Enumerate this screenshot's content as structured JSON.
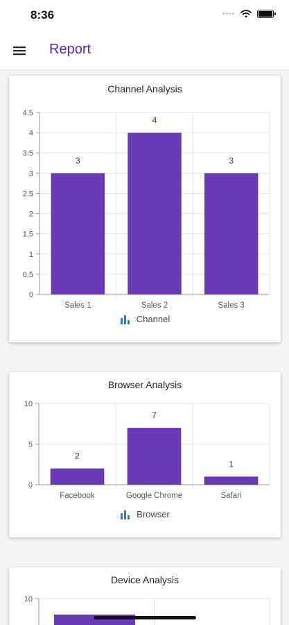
{
  "status": {
    "time": "8:36"
  },
  "app_bar": {
    "title": "Report",
    "menu_icon": "hamburger-menu-icon"
  },
  "colors": {
    "accent": "#5b26b8",
    "bar": "#6939b6",
    "legend_icon": "#3a79c2"
  },
  "chart_data": [
    {
      "type": "bar",
      "title": "Channel Analysis",
      "categories": [
        "Sales 1",
        "Sales 2",
        "Sales 3"
      ],
      "series": [
        {
          "name": "Channel",
          "values": [
            3,
            4,
            3
          ]
        }
      ],
      "ylim": [
        0,
        4.5
      ],
      "yticks": [
        "0",
        "0.5",
        "1",
        "1.5",
        "2",
        "2.5",
        "3",
        "3.5",
        "4",
        "4.5"
      ],
      "data_labels": [
        "3",
        "4",
        "3"
      ],
      "grid": true,
      "legend": "bottom"
    },
    {
      "type": "bar",
      "title": "Browser Analysis",
      "categories": [
        "Facebook",
        "Google Chrome",
        "Safari"
      ],
      "series": [
        {
          "name": "Browser",
          "values": [
            2,
            7,
            1
          ]
        }
      ],
      "ylim": [
        0,
        10
      ],
      "yticks": [
        "0",
        "5",
        "10"
      ],
      "data_labels": [
        "2",
        "7",
        "1"
      ],
      "grid": true,
      "legend": "bottom"
    },
    {
      "type": "bar",
      "title": "Device Analysis",
      "categories": [],
      "series": [
        {
          "values": []
        }
      ],
      "ylim": [
        0,
        10
      ],
      "yticks": [
        "10"
      ],
      "data_labels": [],
      "grid": true
    }
  ]
}
